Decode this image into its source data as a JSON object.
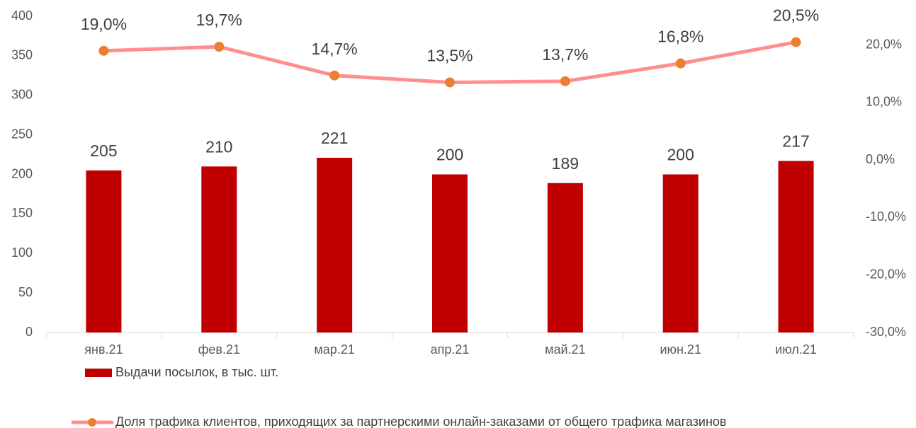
{
  "chart_data": {
    "type": "combo",
    "categories": [
      "янв.21",
      "фев.21",
      "мар.21",
      "апр.21",
      "май.21",
      "июн.21",
      "июл.21"
    ],
    "series": [
      {
        "name": "Выдачи посылок, в тыс. шт.",
        "type": "bar",
        "color": "#c00000",
        "values": [
          205,
          210,
          221,
          200,
          189,
          200,
          217
        ]
      },
      {
        "name": "Доля трафика клиентов, приходящих за партнерскими онлайн-заказами от общего трафика магазинов",
        "type": "line",
        "axis": "y2",
        "color": "#ff8f8f",
        "marker_color": "#ed7d31",
        "values": [
          19.0,
          19.7,
          14.7,
          13.5,
          13.7,
          16.8,
          20.5
        ],
        "value_labels": [
          "19,0%",
          "19,7%",
          "14,7%",
          "13,5%",
          "13,7%",
          "16,8%",
          "20,5%"
        ]
      }
    ],
    "ylim": [
      0,
      400
    ],
    "yticks": [
      0,
      50,
      100,
      150,
      200,
      250,
      300,
      350,
      400
    ],
    "y2lim": [
      -30,
      25
    ],
    "y2ticks": [
      {
        "value": -30,
        "label": "-30,0%"
      },
      {
        "value": -20,
        "label": "-20,0%"
      },
      {
        "value": -10,
        "label": "-10,0%"
      },
      {
        "value": 0,
        "label": "0,0%"
      },
      {
        "value": 10,
        "label": "10,0%"
      },
      {
        "value": 20,
        "label": "20,0%"
      }
    ],
    "grid": false,
    "legend": "bottom"
  }
}
